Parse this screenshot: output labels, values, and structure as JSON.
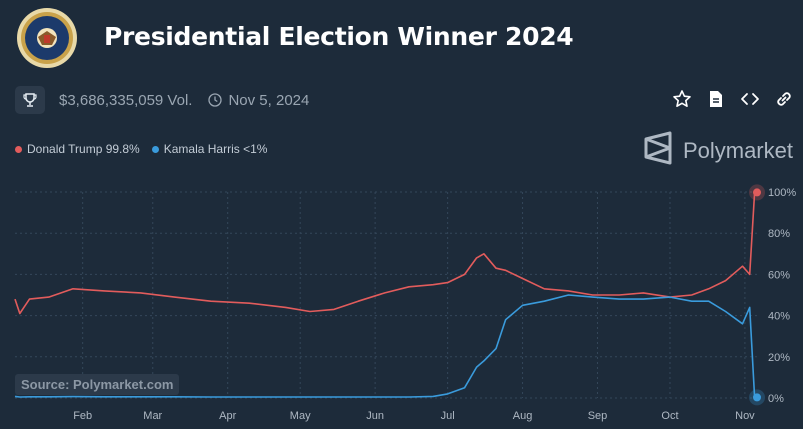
{
  "header": {
    "title": "Presidential Election Winner 2024",
    "seal_icon": "presidential-seal-icon"
  },
  "meta": {
    "volume": "$3,686,335,059 Vol.",
    "date": "Nov 5, 2024"
  },
  "actions": [
    {
      "name": "star-icon"
    },
    {
      "name": "document-icon"
    },
    {
      "name": "embed-code-icon"
    },
    {
      "name": "link-icon"
    }
  ],
  "brand": {
    "name": "Polymarket"
  },
  "source": "Source: Polymarket.com",
  "colors": {
    "trump": "#e25c5c",
    "harris": "#3a9bdc",
    "background": "#1d2b3a"
  },
  "legend": [
    {
      "label": "Donald Trump 99.8%",
      "color": "#e25c5c"
    },
    {
      "label": "Kamala Harris <1%",
      "color": "#3a9bdc"
    }
  ],
  "chart_data": {
    "type": "line",
    "title": "Presidential Election Winner 2024",
    "xlabel": "",
    "ylabel": "",
    "x_tick_labels": [
      "Feb",
      "Mar",
      "Apr",
      "May",
      "Jun",
      "Jul",
      "Aug",
      "Sep",
      "Oct",
      "Nov"
    ],
    "y_tick_labels": [
      "0%",
      "20%",
      "40%",
      "60%",
      "80%",
      "100%"
    ],
    "ylim": [
      0,
      100
    ],
    "xlim": [
      "2024-01-04",
      "2024-11-06"
    ],
    "grid": true,
    "legend_position": "top-left",
    "x": [
      "2024-01-04",
      "2024-01-06",
      "2024-01-10",
      "2024-01-18",
      "2024-01-28",
      "2024-02-10",
      "2024-02-25",
      "2024-03-10",
      "2024-03-25",
      "2024-04-10",
      "2024-04-25",
      "2024-05-05",
      "2024-05-15",
      "2024-05-25",
      "2024-06-05",
      "2024-06-15",
      "2024-06-25",
      "2024-07-01",
      "2024-07-08",
      "2024-07-13",
      "2024-07-16",
      "2024-07-21",
      "2024-07-25",
      "2024-08-01",
      "2024-08-10",
      "2024-08-20",
      "2024-08-30",
      "2024-09-10",
      "2024-09-20",
      "2024-10-01",
      "2024-10-10",
      "2024-10-17",
      "2024-10-24",
      "2024-10-31",
      "2024-11-03",
      "2024-11-05",
      "2024-11-06"
    ],
    "series": [
      {
        "name": "Donald Trump",
        "values": [
          48,
          41,
          48,
          49,
          53,
          52,
          51,
          49,
          47,
          46,
          44,
          42,
          43,
          47,
          51,
          54,
          55,
          56,
          60,
          68,
          70,
          63,
          62,
          58,
          53,
          52,
          50,
          50,
          51,
          49,
          50,
          53,
          57,
          64,
          60,
          99.8,
          99.8
        ]
      },
      {
        "name": "Kamala Harris",
        "values": [
          0.8,
          0.5,
          0.6,
          0.6,
          0.7,
          0.6,
          0.6,
          0.6,
          0.5,
          0.5,
          0.5,
          0.5,
          0.5,
          0.5,
          0.5,
          0.5,
          0.8,
          2,
          5,
          15,
          18,
          24,
          38,
          45,
          47,
          50,
          49,
          48,
          48,
          49,
          47,
          47,
          42,
          36,
          44,
          0.3,
          0.3
        ]
      }
    ]
  }
}
